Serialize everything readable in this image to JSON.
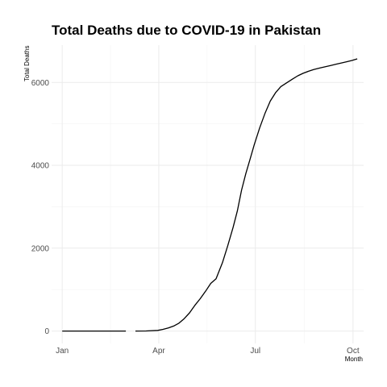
{
  "chart_data": {
    "type": "line",
    "title": "Total Deaths due to COVID-19 in Pakistan",
    "xlabel": "Month",
    "ylabel": "Total Deaths",
    "x_ticks": [
      {
        "label": "Jan",
        "date": "2020-01-01"
      },
      {
        "label": "Apr",
        "date": "2020-04-01"
      },
      {
        "label": "Jul",
        "date": "2020-07-01"
      },
      {
        "label": "Oct",
        "date": "2020-10-01"
      }
    ],
    "y_ticks": [
      0,
      2000,
      4000,
      6000
    ],
    "xlim": [
      "2019-12-22",
      "2020-10-11"
    ],
    "ylim": [
      -300,
      6900
    ],
    "grid": true,
    "series": [
      {
        "segments": [
          [
            [
              "2020-01-01",
              0
            ],
            [
              "2020-03-01",
              0
            ]
          ],
          [
            [
              "2020-03-10",
              0
            ],
            [
              "2020-03-20",
              1
            ],
            [
              "2020-03-31",
              15
            ],
            [
              "2020-04-05",
              40
            ],
            [
              "2020-04-10",
              75
            ],
            [
              "2020-04-15",
              120
            ],
            [
              "2020-04-20",
              190
            ],
            [
              "2020-04-25",
              300
            ],
            [
              "2020-04-30",
              440
            ],
            [
              "2020-05-05",
              620
            ],
            [
              "2020-05-10",
              780
            ],
            [
              "2020-05-15",
              960
            ],
            [
              "2020-05-20",
              1150
            ],
            [
              "2020-05-25",
              1260
            ],
            [
              "2020-05-31",
              1650
            ],
            [
              "2020-06-05",
              2060
            ],
            [
              "2020-06-10",
              2500
            ],
            [
              "2020-06-14",
              2900
            ],
            [
              "2020-06-18",
              3400
            ],
            [
              "2020-06-22",
              3800
            ],
            [
              "2020-06-26",
              4150
            ],
            [
              "2020-06-30",
              4500
            ],
            [
              "2020-07-05",
              4900
            ],
            [
              "2020-07-10",
              5250
            ],
            [
              "2020-07-15",
              5550
            ],
            [
              "2020-07-20",
              5750
            ],
            [
              "2020-07-25",
              5900
            ],
            [
              "2020-07-31",
              6000
            ],
            [
              "2020-08-05",
              6080
            ],
            [
              "2020-08-10",
              6160
            ],
            [
              "2020-08-15",
              6220
            ],
            [
              "2020-08-20",
              6270
            ],
            [
              "2020-08-25",
              6310
            ],
            [
              "2020-08-31",
              6350
            ],
            [
              "2020-09-05",
              6380
            ],
            [
              "2020-09-10",
              6410
            ],
            [
              "2020-09-15",
              6440
            ],
            [
              "2020-09-20",
              6470
            ],
            [
              "2020-09-25",
              6500
            ],
            [
              "2020-09-30",
              6530
            ],
            [
              "2020-10-05",
              6570
            ]
          ]
        ]
      }
    ]
  }
}
